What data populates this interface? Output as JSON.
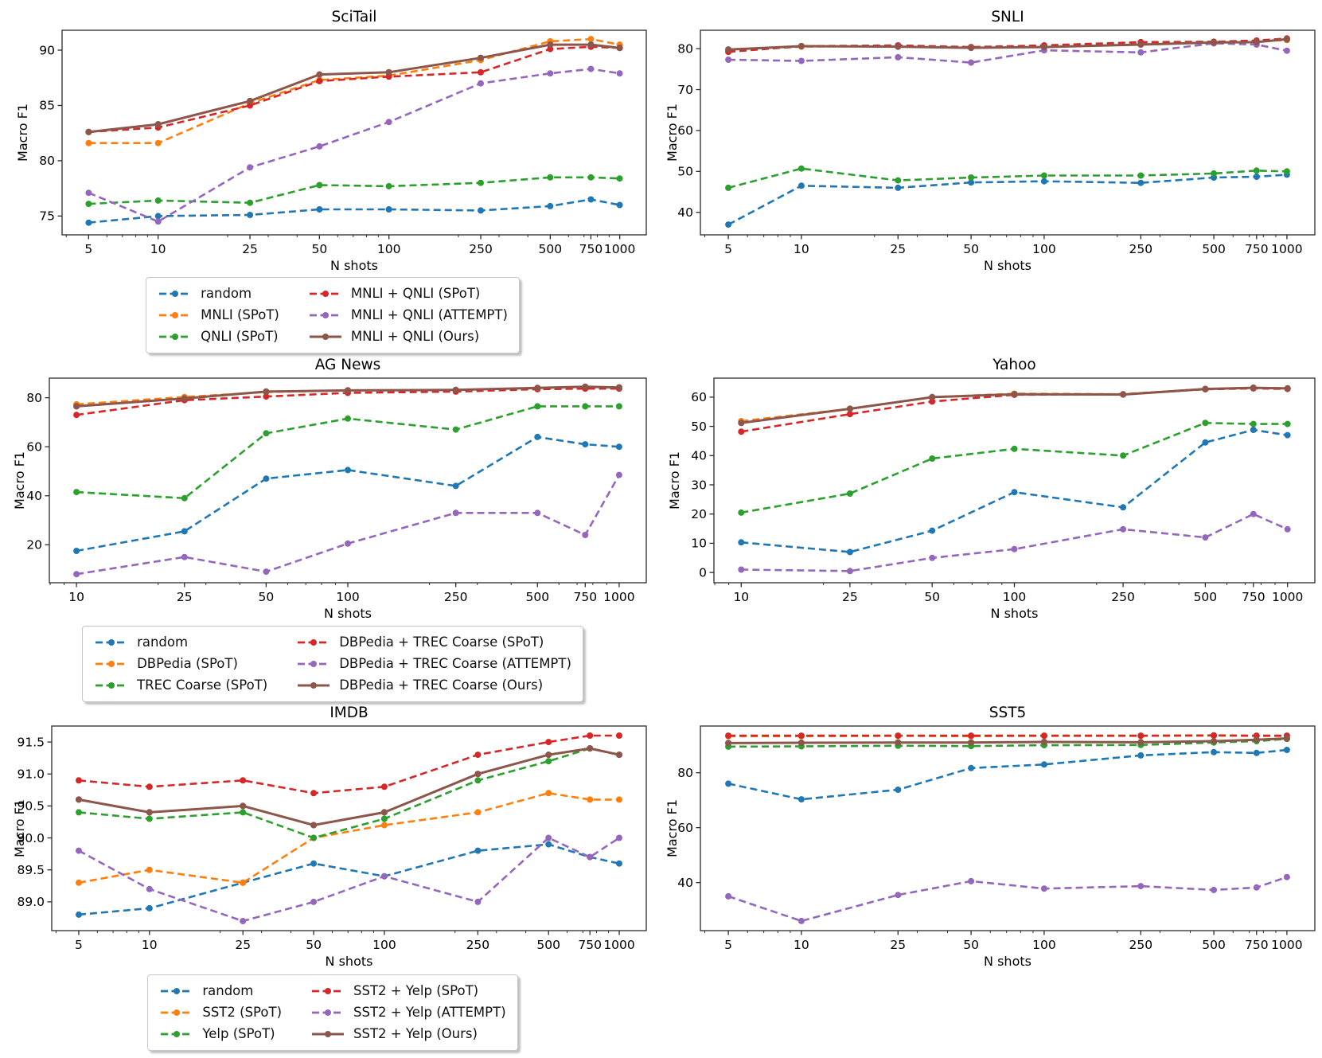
{
  "colors": {
    "blue": "#1f77b4",
    "orange": "#ff7f0e",
    "green": "#2ca02c",
    "red": "#d62728",
    "purple": "#9467bd",
    "brown": "#8c564b"
  },
  "chart_data": [
    {
      "id": "scitail",
      "type": "line",
      "title": "SciTail",
      "xlabel": "N shots",
      "ylabel": "Macro F1",
      "x": [
        5,
        10,
        25,
        50,
        100,
        250,
        500,
        750,
        1000
      ],
      "yticks": [
        75,
        80,
        85,
        90
      ],
      "ydecimals": 0,
      "ylim": [
        73.3,
        91.8
      ],
      "grid": false,
      "legend_position": "below",
      "series": [
        {
          "name": "random",
          "color": "blue",
          "style": "dashed",
          "values": [
            74.4,
            75.0,
            75.1,
            75.6,
            75.6,
            75.5,
            75.9,
            76.5,
            76.0
          ]
        },
        {
          "name": "MNLI (SPoT)",
          "color": "orange",
          "style": "dashed",
          "values": [
            81.6,
            81.6,
            85.2,
            87.3,
            87.7,
            89.1,
            90.8,
            91.0,
            90.5
          ]
        },
        {
          "name": "QNLI (SPoT)",
          "color": "green",
          "style": "dashed",
          "values": [
            76.1,
            76.4,
            76.2,
            77.8,
            77.7,
            78.0,
            78.5,
            78.5,
            78.4
          ]
        },
        {
          "name": "MNLI + QNLI (SPoT)",
          "color": "red",
          "style": "dashed",
          "values": [
            82.6,
            83.0,
            85.0,
            87.2,
            87.6,
            88.0,
            90.1,
            90.3,
            90.2
          ]
        },
        {
          "name": "MNLI + QNLI (ATTEMPT)",
          "color": "purple",
          "style": "dashed",
          "values": [
            77.1,
            74.5,
            79.4,
            81.3,
            83.5,
            87.0,
            87.9,
            88.3,
            87.9
          ]
        },
        {
          "name": "MNLI + QNLI (Ours)",
          "color": "brown",
          "style": "solid",
          "values": [
            82.6,
            83.3,
            85.4,
            87.8,
            88.0,
            89.3,
            90.5,
            90.5,
            90.2
          ]
        }
      ]
    },
    {
      "id": "snli",
      "type": "line",
      "title": "SNLI",
      "xlabel": "N shots",
      "ylabel": "Macro F1",
      "x": [
        5,
        10,
        25,
        50,
        100,
        250,
        500,
        750,
        1000
      ],
      "yticks": [
        40,
        50,
        60,
        70,
        80
      ],
      "ydecimals": 0,
      "ylim": [
        34.5,
        84.5
      ],
      "grid": false,
      "legend_position": "none",
      "series": [
        {
          "name": "random",
          "color": "blue",
          "style": "dashed",
          "values": [
            37.0,
            46.5,
            46.0,
            47.3,
            47.6,
            47.2,
            48.5,
            48.7,
            49.2
          ]
        },
        {
          "name": "MNLI (SPoT)",
          "color": "orange",
          "style": "dashed",
          "values": [
            79.5,
            80.5,
            80.6,
            80.3,
            80.6,
            81.2,
            81.6,
            81.8,
            82.1
          ]
        },
        {
          "name": "QNLI (SPoT)",
          "color": "green",
          "style": "dashed",
          "values": [
            46.0,
            50.7,
            47.8,
            48.5,
            49.0,
            49.0,
            49.5,
            50.2,
            50.0
          ]
        },
        {
          "name": "MNLI + QNLI (SPoT)",
          "color": "red",
          "style": "dashed",
          "values": [
            79.2,
            80.6,
            80.8,
            80.4,
            80.8,
            81.6,
            81.7,
            82.0,
            82.5
          ]
        },
        {
          "name": "MNLI + QNLI (ATTEMPT)",
          "color": "purple",
          "style": "dashed",
          "values": [
            77.3,
            77.0,
            77.9,
            76.6,
            79.6,
            79.1,
            81.3,
            81.0,
            79.5
          ]
        },
        {
          "name": "MNLI + QNLI (Ours)",
          "color": "brown",
          "style": "solid",
          "values": [
            79.8,
            80.6,
            80.5,
            80.2,
            80.4,
            81.0,
            81.5,
            81.6,
            82.3
          ]
        }
      ]
    },
    {
      "id": "agnews",
      "type": "line",
      "title": "AG News",
      "xlabel": "N shots",
      "ylabel": "Macro F1",
      "x": [
        10,
        25,
        50,
        100,
        250,
        500,
        750,
        1000
      ],
      "yticks": [
        20,
        40,
        60,
        80
      ],
      "ydecimals": 0,
      "ylim": [
        4.5,
        88.0
      ],
      "grid": false,
      "legend_position": "below",
      "series": [
        {
          "name": "random",
          "color": "blue",
          "style": "dashed",
          "values": [
            17.5,
            25.5,
            47.0,
            50.5,
            44.0,
            64.0,
            61.0,
            60.0
          ]
        },
        {
          "name": "DBPedia (SPoT)",
          "color": "orange",
          "style": "dashed",
          "values": [
            77.3,
            80.3,
            82.3,
            83.0,
            83.2,
            83.8,
            84.2,
            84.2
          ]
        },
        {
          "name": "TREC Coarse (SPoT)",
          "color": "green",
          "style": "dashed",
          "values": [
            41.5,
            39.0,
            65.5,
            71.5,
            67.0,
            76.5,
            76.5,
            76.5
          ]
        },
        {
          "name": "DBPedia + TREC Coarse (SPoT)",
          "color": "red",
          "style": "dashed",
          "values": [
            73.0,
            79.0,
            80.5,
            82.0,
            82.5,
            83.5,
            83.7,
            83.7
          ]
        },
        {
          "name": "DBPedia + TREC Coarse (ATTEMPT)",
          "color": "purple",
          "style": "dashed",
          "values": [
            8.0,
            15.0,
            9.0,
            20.5,
            33.0,
            33.0,
            24.0,
            48.5
          ]
        },
        {
          "name": "DBPedia + TREC Coarse (Ours)",
          "color": "brown",
          "style": "solid",
          "values": [
            76.5,
            79.7,
            82.5,
            83.0,
            83.2,
            84.0,
            84.5,
            84.2
          ]
        }
      ]
    },
    {
      "id": "yahoo",
      "type": "line",
      "title": "Yahoo",
      "xlabel": "N shots",
      "ylabel": "Macro F1",
      "x": [
        10,
        25,
        50,
        100,
        250,
        500,
        750,
        1000
      ],
      "yticks": [
        0,
        10,
        20,
        30,
        40,
        50,
        60
      ],
      "ydecimals": 0,
      "ylim": [
        -3.5,
        66.5
      ],
      "grid": false,
      "legend_position": "none",
      "series": [
        {
          "name": "random",
          "color": "blue",
          "style": "dashed",
          "values": [
            10.3,
            7.0,
            14.3,
            27.5,
            22.3,
            44.5,
            48.8,
            47.0
          ]
        },
        {
          "name": "DBPedia (SPoT)",
          "color": "orange",
          "style": "dashed",
          "values": [
            51.8,
            56.0,
            60.0,
            61.2,
            61.0,
            62.8,
            63.2,
            63.0
          ]
        },
        {
          "name": "TREC Coarse (SPoT)",
          "color": "green",
          "style": "dashed",
          "values": [
            20.5,
            27.0,
            39.0,
            42.3,
            40.0,
            51.2,
            50.8,
            50.8
          ]
        },
        {
          "name": "DBPedia + TREC Coarse (SPoT)",
          "color": "red",
          "style": "dashed",
          "values": [
            48.2,
            54.2,
            58.5,
            60.8,
            61.0,
            62.7,
            63.0,
            62.8
          ]
        },
        {
          "name": "DBPedia + TREC Coarse (ATTEMPT)",
          "color": "purple",
          "style": "dashed",
          "values": [
            1.0,
            0.5,
            5.0,
            8.0,
            14.8,
            12.0,
            20.0,
            14.8
          ]
        },
        {
          "name": "DBPedia + TREC Coarse (Ours)",
          "color": "brown",
          "style": "solid",
          "values": [
            51.2,
            56.0,
            60.0,
            61.0,
            60.9,
            62.8,
            63.2,
            63.0
          ]
        }
      ]
    },
    {
      "id": "imdb",
      "type": "line",
      "title": "IMDB",
      "xlabel": "N shots",
      "ylabel": "Macro F1",
      "x": [
        5,
        10,
        25,
        50,
        100,
        250,
        500,
        750,
        1000
      ],
      "yticks": [
        89.0,
        89.5,
        90.0,
        90.5,
        91.0,
        91.5
      ],
      "ydecimals": 1,
      "ylim": [
        88.55,
        91.75
      ],
      "grid": false,
      "legend_position": "below",
      "series": [
        {
          "name": "random",
          "color": "blue",
          "style": "dashed",
          "values": [
            88.8,
            88.9,
            89.3,
            89.6,
            89.4,
            89.8,
            89.9,
            89.7,
            89.6
          ]
        },
        {
          "name": "SST2 (SPoT)",
          "color": "orange",
          "style": "dashed",
          "values": [
            89.3,
            89.5,
            89.3,
            90.0,
            90.2,
            90.4,
            90.7,
            90.6,
            90.6
          ]
        },
        {
          "name": "Yelp (SPoT)",
          "color": "green",
          "style": "dashed",
          "values": [
            90.4,
            90.3,
            90.4,
            90.0,
            90.3,
            90.9,
            91.2,
            91.4,
            91.3
          ]
        },
        {
          "name": "SST2 + Yelp (SPoT)",
          "color": "red",
          "style": "dashed",
          "values": [
            90.9,
            90.8,
            90.9,
            90.7,
            90.8,
            91.3,
            91.5,
            91.6,
            91.6
          ]
        },
        {
          "name": "SST2 + Yelp (ATTEMPT)",
          "color": "purple",
          "style": "dashed",
          "values": [
            89.8,
            89.2,
            88.7,
            89.0,
            89.4,
            89.0,
            90.0,
            89.7,
            90.0
          ]
        },
        {
          "name": "SST2 + Yelp (Ours)",
          "color": "brown",
          "style": "solid",
          "values": [
            90.6,
            90.4,
            90.5,
            90.2,
            90.4,
            91.0,
            91.3,
            91.4,
            91.3
          ]
        }
      ]
    },
    {
      "id": "sst5",
      "type": "line",
      "title": "SST5",
      "xlabel": "N shots",
      "ylabel": "Macro F1",
      "x": [
        5,
        10,
        25,
        50,
        100,
        250,
        500,
        750,
        1000
      ],
      "yticks": [
        40,
        60,
        80
      ],
      "ydecimals": 0,
      "ylim": [
        22.5,
        97.0
      ],
      "grid": false,
      "legend_position": "none",
      "series": [
        {
          "name": "random",
          "color": "blue",
          "style": "dashed",
          "values": [
            76.0,
            70.3,
            73.8,
            81.7,
            83.0,
            86.3,
            87.5,
            87.2,
            88.3
          ]
        },
        {
          "name": "SST2 (SPoT)",
          "color": "orange",
          "style": "dashed",
          "values": [
            93.3,
            93.3,
            93.4,
            93.3,
            93.4,
            93.4,
            93.5,
            93.4,
            93.4
          ]
        },
        {
          "name": "Yelp (SPoT)",
          "color": "green",
          "style": "dashed",
          "values": [
            89.5,
            89.6,
            89.8,
            89.7,
            90.0,
            90.1,
            91.0,
            91.5,
            92.3
          ]
        },
        {
          "name": "SST2 + Yelp (SPoT)",
          "color": "red",
          "style": "dashed",
          "values": [
            93.5,
            93.5,
            93.5,
            93.5,
            93.5,
            93.5,
            93.6,
            93.5,
            93.5
          ]
        },
        {
          "name": "SST2 + Yelp (ATTEMPT)",
          "color": "purple",
          "style": "dashed",
          "values": [
            35.0,
            26.0,
            35.5,
            40.5,
            37.8,
            38.7,
            37.3,
            38.2,
            42.0
          ]
        },
        {
          "name": "SST2 + Yelp (Ours)",
          "color": "brown",
          "style": "solid",
          "values": [
            90.8,
            90.9,
            91.0,
            91.0,
            91.2,
            91.1,
            91.5,
            92.0,
            92.5
          ]
        }
      ]
    }
  ],
  "legends": [
    {
      "id": "legend-row1",
      "entries": [
        {
          "label": "random",
          "color": "blue",
          "style": "dashed"
        },
        {
          "label": "MNLI (SPoT)",
          "color": "orange",
          "style": "dashed"
        },
        {
          "label": "QNLI (SPoT)",
          "color": "green",
          "style": "dashed"
        },
        {
          "label": "MNLI + QNLI (SPoT)",
          "color": "red",
          "style": "dashed"
        },
        {
          "label": "MNLI + QNLI (ATTEMPT)",
          "color": "purple",
          "style": "dashed"
        },
        {
          "label": "MNLI + QNLI (Ours)",
          "color": "brown",
          "style": "solid"
        }
      ]
    },
    {
      "id": "legend-row2",
      "entries": [
        {
          "label": "random",
          "color": "blue",
          "style": "dashed"
        },
        {
          "label": "DBPedia (SPoT)",
          "color": "orange",
          "style": "dashed"
        },
        {
          "label": "TREC Coarse (SPoT)",
          "color": "green",
          "style": "dashed"
        },
        {
          "label": "DBPedia + TREC Coarse (SPoT)",
          "color": "red",
          "style": "dashed"
        },
        {
          "label": "DBPedia + TREC Coarse (ATTEMPT)",
          "color": "purple",
          "style": "dashed"
        },
        {
          "label": "DBPedia + TREC Coarse (Ours)",
          "color": "brown",
          "style": "solid"
        }
      ]
    },
    {
      "id": "legend-row3",
      "entries": [
        {
          "label": "random",
          "color": "blue",
          "style": "dashed"
        },
        {
          "label": "SST2 (SPoT)",
          "color": "orange",
          "style": "dashed"
        },
        {
          "label": "Yelp (SPoT)",
          "color": "green",
          "style": "dashed"
        },
        {
          "label": "SST2 + Yelp (SPoT)",
          "color": "red",
          "style": "dashed"
        },
        {
          "label": "SST2 + Yelp (ATTEMPT)",
          "color": "purple",
          "style": "dashed"
        },
        {
          "label": "SST2 + Yelp (Ours)",
          "color": "brown",
          "style": "solid"
        }
      ]
    }
  ]
}
